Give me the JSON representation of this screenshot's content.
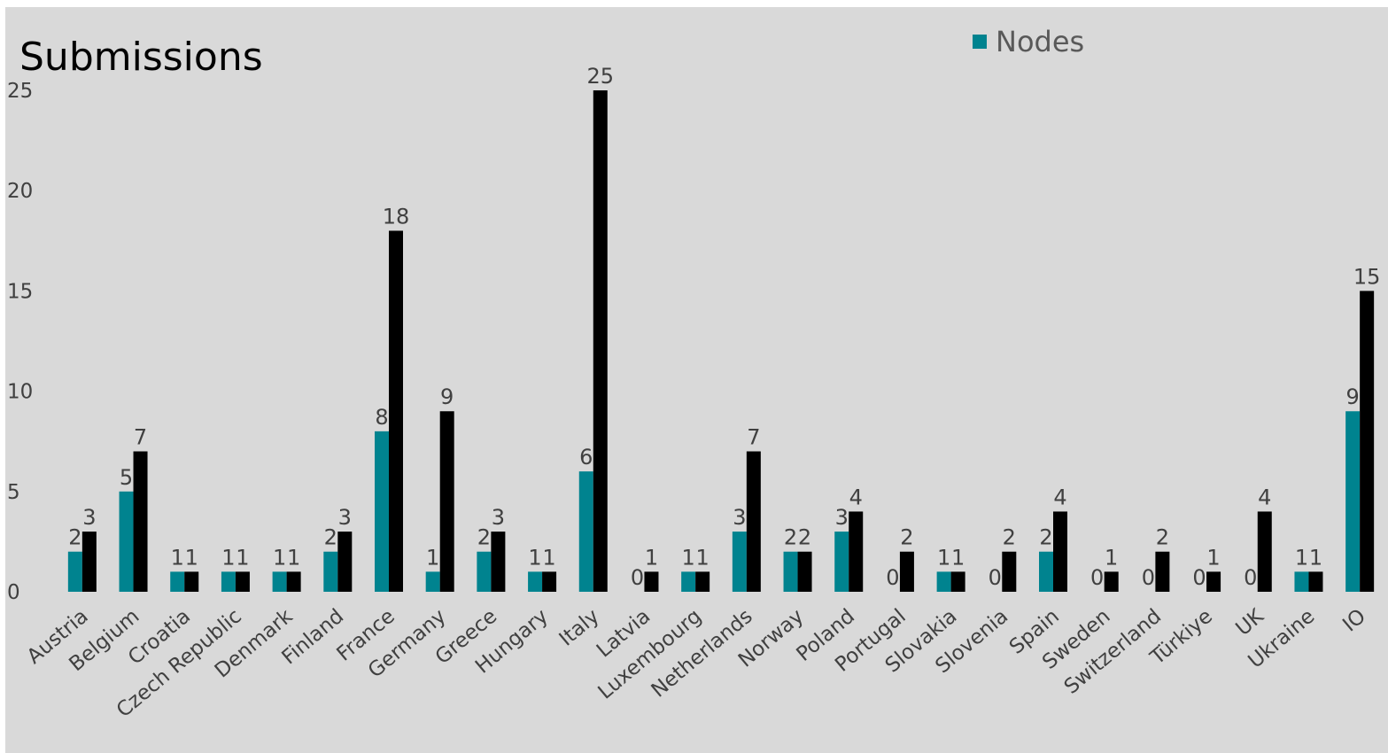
{
  "chart_data": {
    "type": "bar",
    "title": "Submissions",
    "xlabel": "",
    "ylabel": "",
    "ylim": [
      0,
      25
    ],
    "yticks": [
      0,
      5,
      10,
      15,
      20,
      25
    ],
    "grid": false,
    "legend_position": "top-right",
    "categories": [
      "Austria",
      "Belgium",
      "Croatia",
      "Czech Republic",
      "Denmark",
      "Finland",
      "France",
      "Germany",
      "Greece",
      "Hungary",
      "Italy",
      "Latvia",
      "Luxembourg",
      "Netherlands",
      "Norway",
      "Poland",
      "Portugal",
      "Slovakia",
      "Slovenia",
      "Spain",
      "Sweden",
      "Switzerland",
      "Türkiye",
      "UK",
      "Ukraine",
      "IO"
    ],
    "series": [
      {
        "name": "Nodes",
        "color": "#00838f",
        "values": [
          2,
          5,
          1,
          1,
          1,
          2,
          8,
          1,
          2,
          1,
          6,
          0,
          1,
          3,
          2,
          3,
          0,
          1,
          0,
          2,
          0,
          0,
          0,
          0,
          1,
          9
        ]
      },
      {
        "color": "#000000",
        "values": [
          3,
          7,
          1,
          1,
          1,
          3,
          18,
          9,
          3,
          1,
          25,
          1,
          1,
          7,
          2,
          4,
          2,
          1,
          2,
          4,
          1,
          2,
          1,
          4,
          1,
          15
        ]
      }
    ]
  }
}
